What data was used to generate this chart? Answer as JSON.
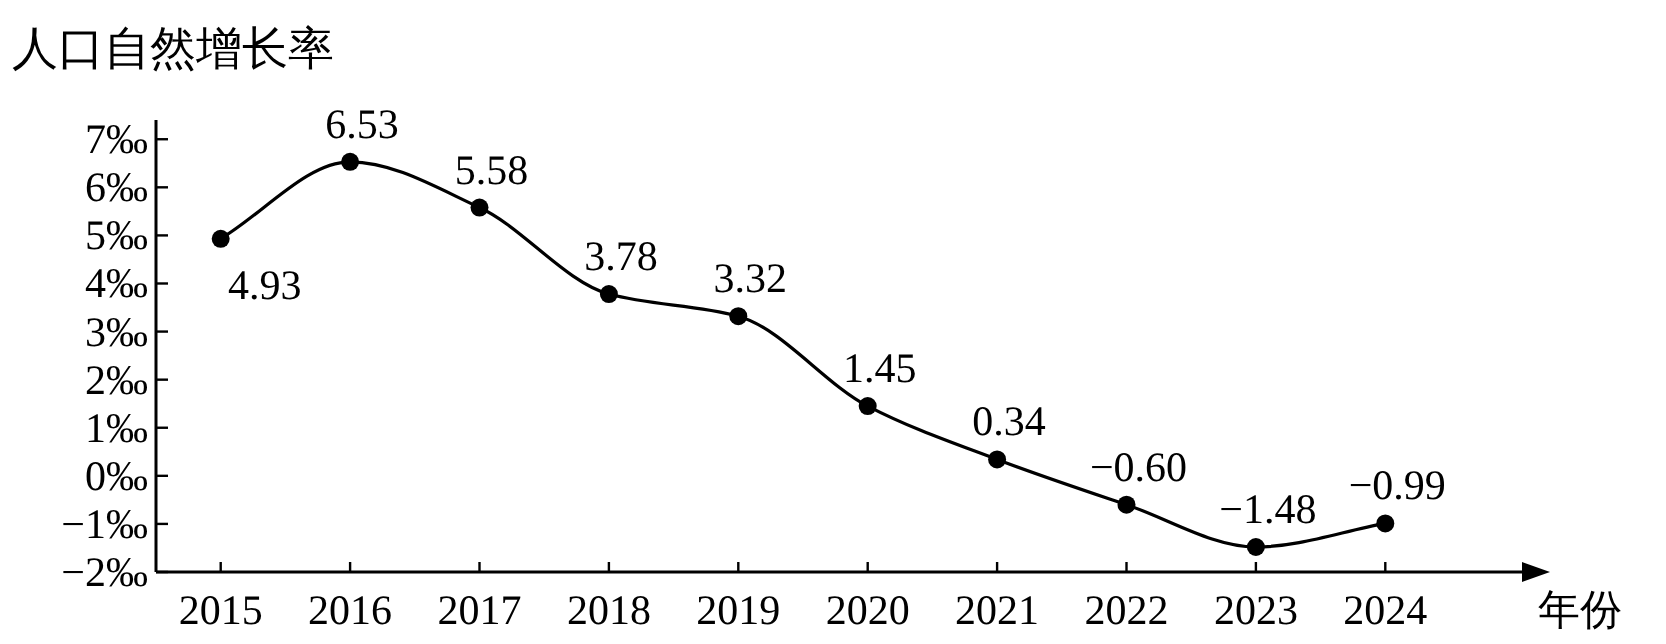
{
  "chart_data": {
    "type": "line",
    "ylabel": "人口自然增长率",
    "xlabel": "年份",
    "categories": [
      "2015",
      "2016",
      "2017",
      "2018",
      "2019",
      "2020",
      "2021",
      "2022",
      "2023",
      "2024"
    ],
    "values": [
      4.93,
      6.53,
      5.58,
      3.78,
      3.32,
      1.45,
      0.34,
      -0.6,
      -1.48,
      -0.99
    ],
    "value_labels": [
      "4.93",
      "6.53",
      "5.58",
      "3.78",
      "3.32",
      "1.45",
      "0.34",
      "−0.60",
      "−1.48",
      "−0.99"
    ],
    "ylim": [
      -2,
      7.4
    ],
    "yticks": [
      {
        "value": 7,
        "label": "7‰"
      },
      {
        "value": 6,
        "label": "6‰"
      },
      {
        "value": 5,
        "label": "5‰"
      },
      {
        "value": 4,
        "label": "4‰"
      },
      {
        "value": 3,
        "label": "3‰"
      },
      {
        "value": 2,
        "label": "2‰"
      },
      {
        "value": 1,
        "label": "1‰"
      },
      {
        "value": 0,
        "label": "0‰"
      },
      {
        "value": -1,
        "label": "−1‰"
      },
      {
        "value": -2,
        "label": "−2‰"
      }
    ],
    "marker": "circle",
    "line_style": "solid"
  }
}
